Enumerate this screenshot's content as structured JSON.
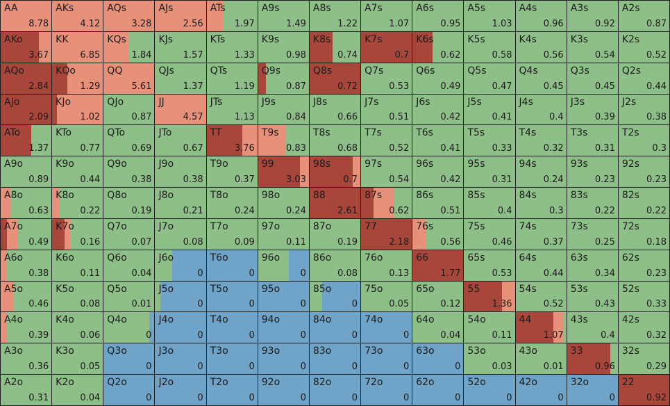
{
  "grid": {
    "action_colors": [
      "#a8463b",
      "#e8917a",
      "#8fbf88",
      "#6fa3c7"
    ],
    "hands": [
      [
        "AA",
        "AKs",
        "AQs",
        "AJs",
        "ATs",
        "A9s",
        "A8s",
        "A7s",
        "A6s",
        "A5s",
        "A4s",
        "A3s",
        "A2s"
      ],
      [
        "AKo",
        "KK",
        "KQs",
        "KJs",
        "KTs",
        "K9s",
        "K8s",
        "K7s",
        "K6s",
        "K5s",
        "K4s",
        "K3s",
        "K2s"
      ],
      [
        "AQo",
        "KQo",
        "QQ",
        "QJs",
        "QTs",
        "Q9s",
        "Q8s",
        "Q7s",
        "Q6s",
        "Q5s",
        "Q4s",
        "Q3s",
        "Q2s"
      ],
      [
        "AJo",
        "KJo",
        "QJo",
        "JJ",
        "JTs",
        "J9s",
        "J8s",
        "J7s",
        "J6s",
        "J5s",
        "J4s",
        "J3s",
        "J2s"
      ],
      [
        "ATo",
        "KTo",
        "QTo",
        "JTo",
        "TT",
        "T9s",
        "T8s",
        "T7s",
        "T6s",
        "T5s",
        "T4s",
        "T3s",
        "T2s"
      ],
      [
        "A9o",
        "K9o",
        "Q9o",
        "J9o",
        "T9o",
        "99",
        "98s",
        "97s",
        "96s",
        "95s",
        "94s",
        "93s",
        "92s"
      ],
      [
        "A8o",
        "K8o",
        "Q8o",
        "J8o",
        "T8o",
        "98o",
        "88",
        "87s",
        "86s",
        "85s",
        "84s",
        "83s",
        "82s"
      ],
      [
        "A7o",
        "K7o",
        "Q7o",
        "J7o",
        "T7o",
        "97o",
        "87o",
        "77",
        "76s",
        "75s",
        "74s",
        "73s",
        "72s"
      ],
      [
        "A6o",
        "K6o",
        "Q6o",
        "J6o",
        "T6o",
        "96o",
        "86o",
        "76o",
        "66",
        "65s",
        "64s",
        "63s",
        "62s"
      ],
      [
        "A5o",
        "K5o",
        "Q5o",
        "J5o",
        "T5o",
        "95o",
        "85o",
        "75o",
        "65o",
        "55",
        "54s",
        "53s",
        "52s"
      ],
      [
        "A4o",
        "K4o",
        "Q4o",
        "J4o",
        "T4o",
        "94o",
        "84o",
        "74o",
        "64o",
        "54o",
        "44",
        "43s",
        "42s"
      ],
      [
        "A3o",
        "K3o",
        "Q3o",
        "J3o",
        "T3o",
        "93o",
        "83o",
        "73o",
        "63o",
        "53o",
        "43o",
        "33",
        "32s"
      ],
      [
        "A2o",
        "K2o",
        "Q2o",
        "J2o",
        "T2o",
        "92o",
        "82o",
        "72o",
        "62o",
        "52o",
        "42o",
        "32o",
        "22"
      ]
    ],
    "values": [
      [
        8.78,
        4.12,
        3.28,
        2.56,
        1.97,
        1.49,
        1.22,
        1.07,
        0.95,
        1.03,
        0.96,
        0.92,
        0.87
      ],
      [
        3.67,
        6.85,
        1.84,
        1.57,
        1.33,
        0.98,
        0.74,
        0.7,
        0.62,
        0.58,
        0.56,
        0.54,
        0.52
      ],
      [
        2.84,
        1.29,
        5.61,
        1.37,
        1.19,
        0.87,
        0.72,
        0.53,
        0.49,
        0.47,
        0.45,
        0.45,
        0.44
      ],
      [
        2.09,
        1.02,
        0.87,
        4.57,
        1.13,
        0.84,
        0.66,
        0.51,
        0.42,
        0.41,
        0.4,
        0.39,
        0.38
      ],
      [
        1.37,
        0.77,
        0.69,
        0.67,
        3.76,
        0.83,
        0.68,
        0.52,
        0.41,
        0.33,
        0.32,
        0.31,
        0.3
      ],
      [
        0.89,
        0.44,
        0.38,
        0.38,
        0.37,
        3.03,
        0.7,
        0.54,
        0.42,
        0.31,
        0.24,
        0.23,
        0.23
      ],
      [
        0.63,
        0.22,
        0.19,
        0.21,
        0.24,
        0.24,
        2.61,
        0.62,
        0.51,
        0.4,
        0.3,
        0.22,
        0.22
      ],
      [
        0.49,
        0.16,
        0.07,
        0.08,
        0.09,
        0.11,
        0.19,
        2.18,
        0.56,
        0.46,
        0.37,
        0.25,
        0.18
      ],
      [
        0.38,
        0.11,
        0.04,
        0,
        0,
        0,
        0.08,
        0.13,
        1.77,
        0.53,
        0.44,
        0.34,
        0.23
      ],
      [
        0.46,
        0.08,
        0.01,
        0,
        0,
        0,
        0,
        0.05,
        0.12,
        1.36,
        0.52,
        0.43,
        0.33
      ],
      [
        0.39,
        0.06,
        0,
        0,
        0,
        0,
        0,
        0,
        0.04,
        0.11,
        1.07,
        0.4,
        0.32
      ],
      [
        0.36,
        0.05,
        0,
        0,
        0,
        0,
        0,
        0,
        0,
        0.03,
        0.01,
        0.96,
        0.29
      ],
      [
        0.31,
        0.04,
        0,
        0,
        0,
        0,
        0,
        0,
        0,
        0,
        0,
        0,
        0.92
      ]
    ],
    "mix": [
      [
        [
          0,
          100,
          0,
          0
        ],
        [
          0,
          100,
          0,
          0
        ],
        [
          0,
          100,
          0,
          0
        ],
        [
          0,
          100,
          0,
          0
        ],
        [
          0,
          32,
          68,
          0
        ],
        [
          0,
          0,
          100,
          0
        ],
        [
          0,
          0,
          100,
          0
        ],
        [
          0,
          0,
          100,
          0
        ],
        [
          0,
          0,
          100,
          0
        ],
        [
          0,
          0,
          100,
          0
        ],
        [
          0,
          0,
          100,
          0
        ],
        [
          0,
          0,
          100,
          0
        ],
        [
          0,
          0,
          100,
          0
        ]
      ],
      [
        [
          75,
          25,
          0,
          0
        ],
        [
          0,
          100,
          0,
          0
        ],
        [
          0,
          50,
          50,
          0
        ],
        [
          0,
          0,
          100,
          0
        ],
        [
          0,
          0,
          100,
          0
        ],
        [
          0,
          0,
          100,
          0
        ],
        [
          45,
          0,
          55,
          0
        ],
        [
          100,
          0,
          0,
          0
        ],
        [
          40,
          0,
          60,
          0
        ],
        [
          0,
          0,
          100,
          0
        ],
        [
          0,
          0,
          100,
          0
        ],
        [
          0,
          0,
          100,
          0
        ],
        [
          0,
          0,
          100,
          0
        ]
      ],
      [
        [
          100,
          0,
          0,
          0
        ],
        [
          30,
          70,
          0,
          0
        ],
        [
          0,
          100,
          0,
          0
        ],
        [
          0,
          0,
          100,
          0
        ],
        [
          0,
          0,
          100,
          0
        ],
        [
          15,
          0,
          85,
          0
        ],
        [
          100,
          0,
          0,
          0
        ],
        [
          0,
          0,
          100,
          0
        ],
        [
          0,
          0,
          100,
          0
        ],
        [
          0,
          0,
          100,
          0
        ],
        [
          0,
          0,
          100,
          0
        ],
        [
          0,
          0,
          100,
          0
        ],
        [
          0,
          0,
          100,
          0
        ]
      ],
      [
        [
          100,
          0,
          0,
          0
        ],
        [
          10,
          90,
          0,
          0
        ],
        [
          0,
          0,
          100,
          0
        ],
        [
          0,
          100,
          0,
          0
        ],
        [
          0,
          0,
          100,
          0
        ],
        [
          0,
          0,
          100,
          0
        ],
        [
          0,
          0,
          100,
          0
        ],
        [
          0,
          0,
          100,
          0
        ],
        [
          0,
          0,
          100,
          0
        ],
        [
          0,
          0,
          100,
          0
        ],
        [
          0,
          0,
          100,
          0
        ],
        [
          0,
          0,
          100,
          0
        ],
        [
          0,
          0,
          100,
          0
        ]
      ],
      [
        [
          60,
          0,
          40,
          0
        ],
        [
          0,
          0,
          100,
          0
        ],
        [
          0,
          0,
          100,
          0
        ],
        [
          0,
          0,
          100,
          0
        ],
        [
          70,
          30,
          0,
          0
        ],
        [
          0,
          55,
          45,
          0
        ],
        [
          0,
          0,
          100,
          0
        ],
        [
          0,
          0,
          100,
          0
        ],
        [
          0,
          0,
          100,
          0
        ],
        [
          0,
          0,
          100,
          0
        ],
        [
          0,
          0,
          100,
          0
        ],
        [
          0,
          0,
          100,
          0
        ],
        [
          0,
          0,
          100,
          0
        ]
      ],
      [
        [
          0,
          0,
          100,
          0
        ],
        [
          0,
          0,
          100,
          0
        ],
        [
          0,
          0,
          100,
          0
        ],
        [
          0,
          0,
          100,
          0
        ],
        [
          0,
          0,
          100,
          0
        ],
        [
          82,
          18,
          0,
          0
        ],
        [
          85,
          15,
          0,
          0
        ],
        [
          0,
          0,
          100,
          0
        ],
        [
          0,
          0,
          100,
          0
        ],
        [
          0,
          0,
          100,
          0
        ],
        [
          0,
          0,
          100,
          0
        ],
        [
          0,
          0,
          100,
          0
        ],
        [
          0,
          0,
          100,
          0
        ]
      ],
      [
        [
          0,
          20,
          80,
          0
        ],
        [
          0,
          15,
          85,
          0
        ],
        [
          0,
          0,
          100,
          0
        ],
        [
          0,
          0,
          100,
          0
        ],
        [
          0,
          0,
          100,
          0
        ],
        [
          0,
          0,
          100,
          0
        ],
        [
          100,
          0,
          0,
          0
        ],
        [
          25,
          40,
          35,
          0
        ],
        [
          0,
          0,
          100,
          0
        ],
        [
          0,
          0,
          100,
          0
        ],
        [
          0,
          0,
          100,
          0
        ],
        [
          0,
          0,
          100,
          0
        ],
        [
          0,
          0,
          100,
          0
        ]
      ],
      [
        [
          12,
          22,
          66,
          0
        ],
        [
          25,
          10,
          65,
          0
        ],
        [
          0,
          0,
          100,
          0
        ],
        [
          0,
          0,
          100,
          0
        ],
        [
          0,
          0,
          100,
          0
        ],
        [
          0,
          0,
          100,
          0
        ],
        [
          0,
          0,
          100,
          0
        ],
        [
          100,
          0,
          0,
          0
        ],
        [
          0,
          25,
          75,
          0
        ],
        [
          0,
          0,
          100,
          0
        ],
        [
          0,
          0,
          100,
          0
        ],
        [
          0,
          0,
          100,
          0
        ],
        [
          0,
          0,
          100,
          0
        ]
      ],
      [
        [
          0,
          12,
          88,
          0
        ],
        [
          0,
          0,
          100,
          0
        ],
        [
          0,
          0,
          100,
          0
        ],
        [
          0,
          0,
          33,
          67
        ],
        [
          0,
          0,
          0,
          100
        ],
        [
          0,
          0,
          60,
          40
        ],
        [
          0,
          0,
          100,
          0
        ],
        [
          0,
          0,
          100,
          0
        ],
        [
          100,
          0,
          0,
          0
        ],
        [
          0,
          0,
          100,
          0
        ],
        [
          0,
          0,
          100,
          0
        ],
        [
          0,
          0,
          100,
          0
        ],
        [
          0,
          0,
          100,
          0
        ]
      ],
      [
        [
          0,
          25,
          75,
          0
        ],
        [
          0,
          0,
          100,
          0
        ],
        [
          0,
          0,
          100,
          0
        ],
        [
          0,
          0,
          10,
          90
        ],
        [
          0,
          0,
          0,
          100
        ],
        [
          0,
          0,
          0,
          100
        ],
        [
          0,
          0,
          25,
          75
        ],
        [
          0,
          0,
          100,
          0
        ],
        [
          0,
          0,
          100,
          0
        ],
        [
          75,
          25,
          0,
          0
        ],
        [
          0,
          0,
          100,
          0
        ],
        [
          0,
          0,
          100,
          0
        ],
        [
          0,
          0,
          100,
          0
        ]
      ],
      [
        [
          0,
          12,
          88,
          0
        ],
        [
          0,
          0,
          100,
          0
        ],
        [
          0,
          0,
          90,
          10
        ],
        [
          0,
          0,
          0,
          100
        ],
        [
          0,
          0,
          0,
          100
        ],
        [
          0,
          0,
          0,
          100
        ],
        [
          0,
          0,
          0,
          100
        ],
        [
          0,
          0,
          0,
          100
        ],
        [
          0,
          0,
          100,
          0
        ],
        [
          0,
          0,
          100,
          0
        ],
        [
          75,
          20,
          5,
          0
        ],
        [
          0,
          0,
          100,
          0
        ],
        [
          0,
          0,
          100,
          0
        ]
      ],
      [
        [
          0,
          0,
          100,
          0
        ],
        [
          0,
          0,
          100,
          0
        ],
        [
          0,
          0,
          0,
          100
        ],
        [
          0,
          0,
          0,
          100
        ],
        [
          0,
          0,
          0,
          100
        ],
        [
          0,
          0,
          0,
          100
        ],
        [
          0,
          0,
          0,
          100
        ],
        [
          0,
          0,
          0,
          100
        ],
        [
          0,
          0,
          0,
          100
        ],
        [
          0,
          0,
          100,
          0
        ],
        [
          0,
          0,
          100,
          0
        ],
        [
          85,
          0,
          15,
          0
        ],
        [
          0,
          0,
          100,
          0
        ]
      ],
      [
        [
          0,
          0,
          100,
          0
        ],
        [
          0,
          0,
          100,
          0
        ],
        [
          0,
          0,
          0,
          100
        ],
        [
          0,
          0,
          0,
          100
        ],
        [
          0,
          0,
          0,
          100
        ],
        [
          0,
          0,
          0,
          100
        ],
        [
          0,
          0,
          0,
          100
        ],
        [
          0,
          0,
          0,
          100
        ],
        [
          0,
          0,
          0,
          100
        ],
        [
          0,
          0,
          0,
          100
        ],
        [
          0,
          0,
          0,
          100
        ],
        [
          0,
          0,
          0,
          100
        ],
        [
          100,
          0,
          0,
          0
        ]
      ]
    ]
  }
}
